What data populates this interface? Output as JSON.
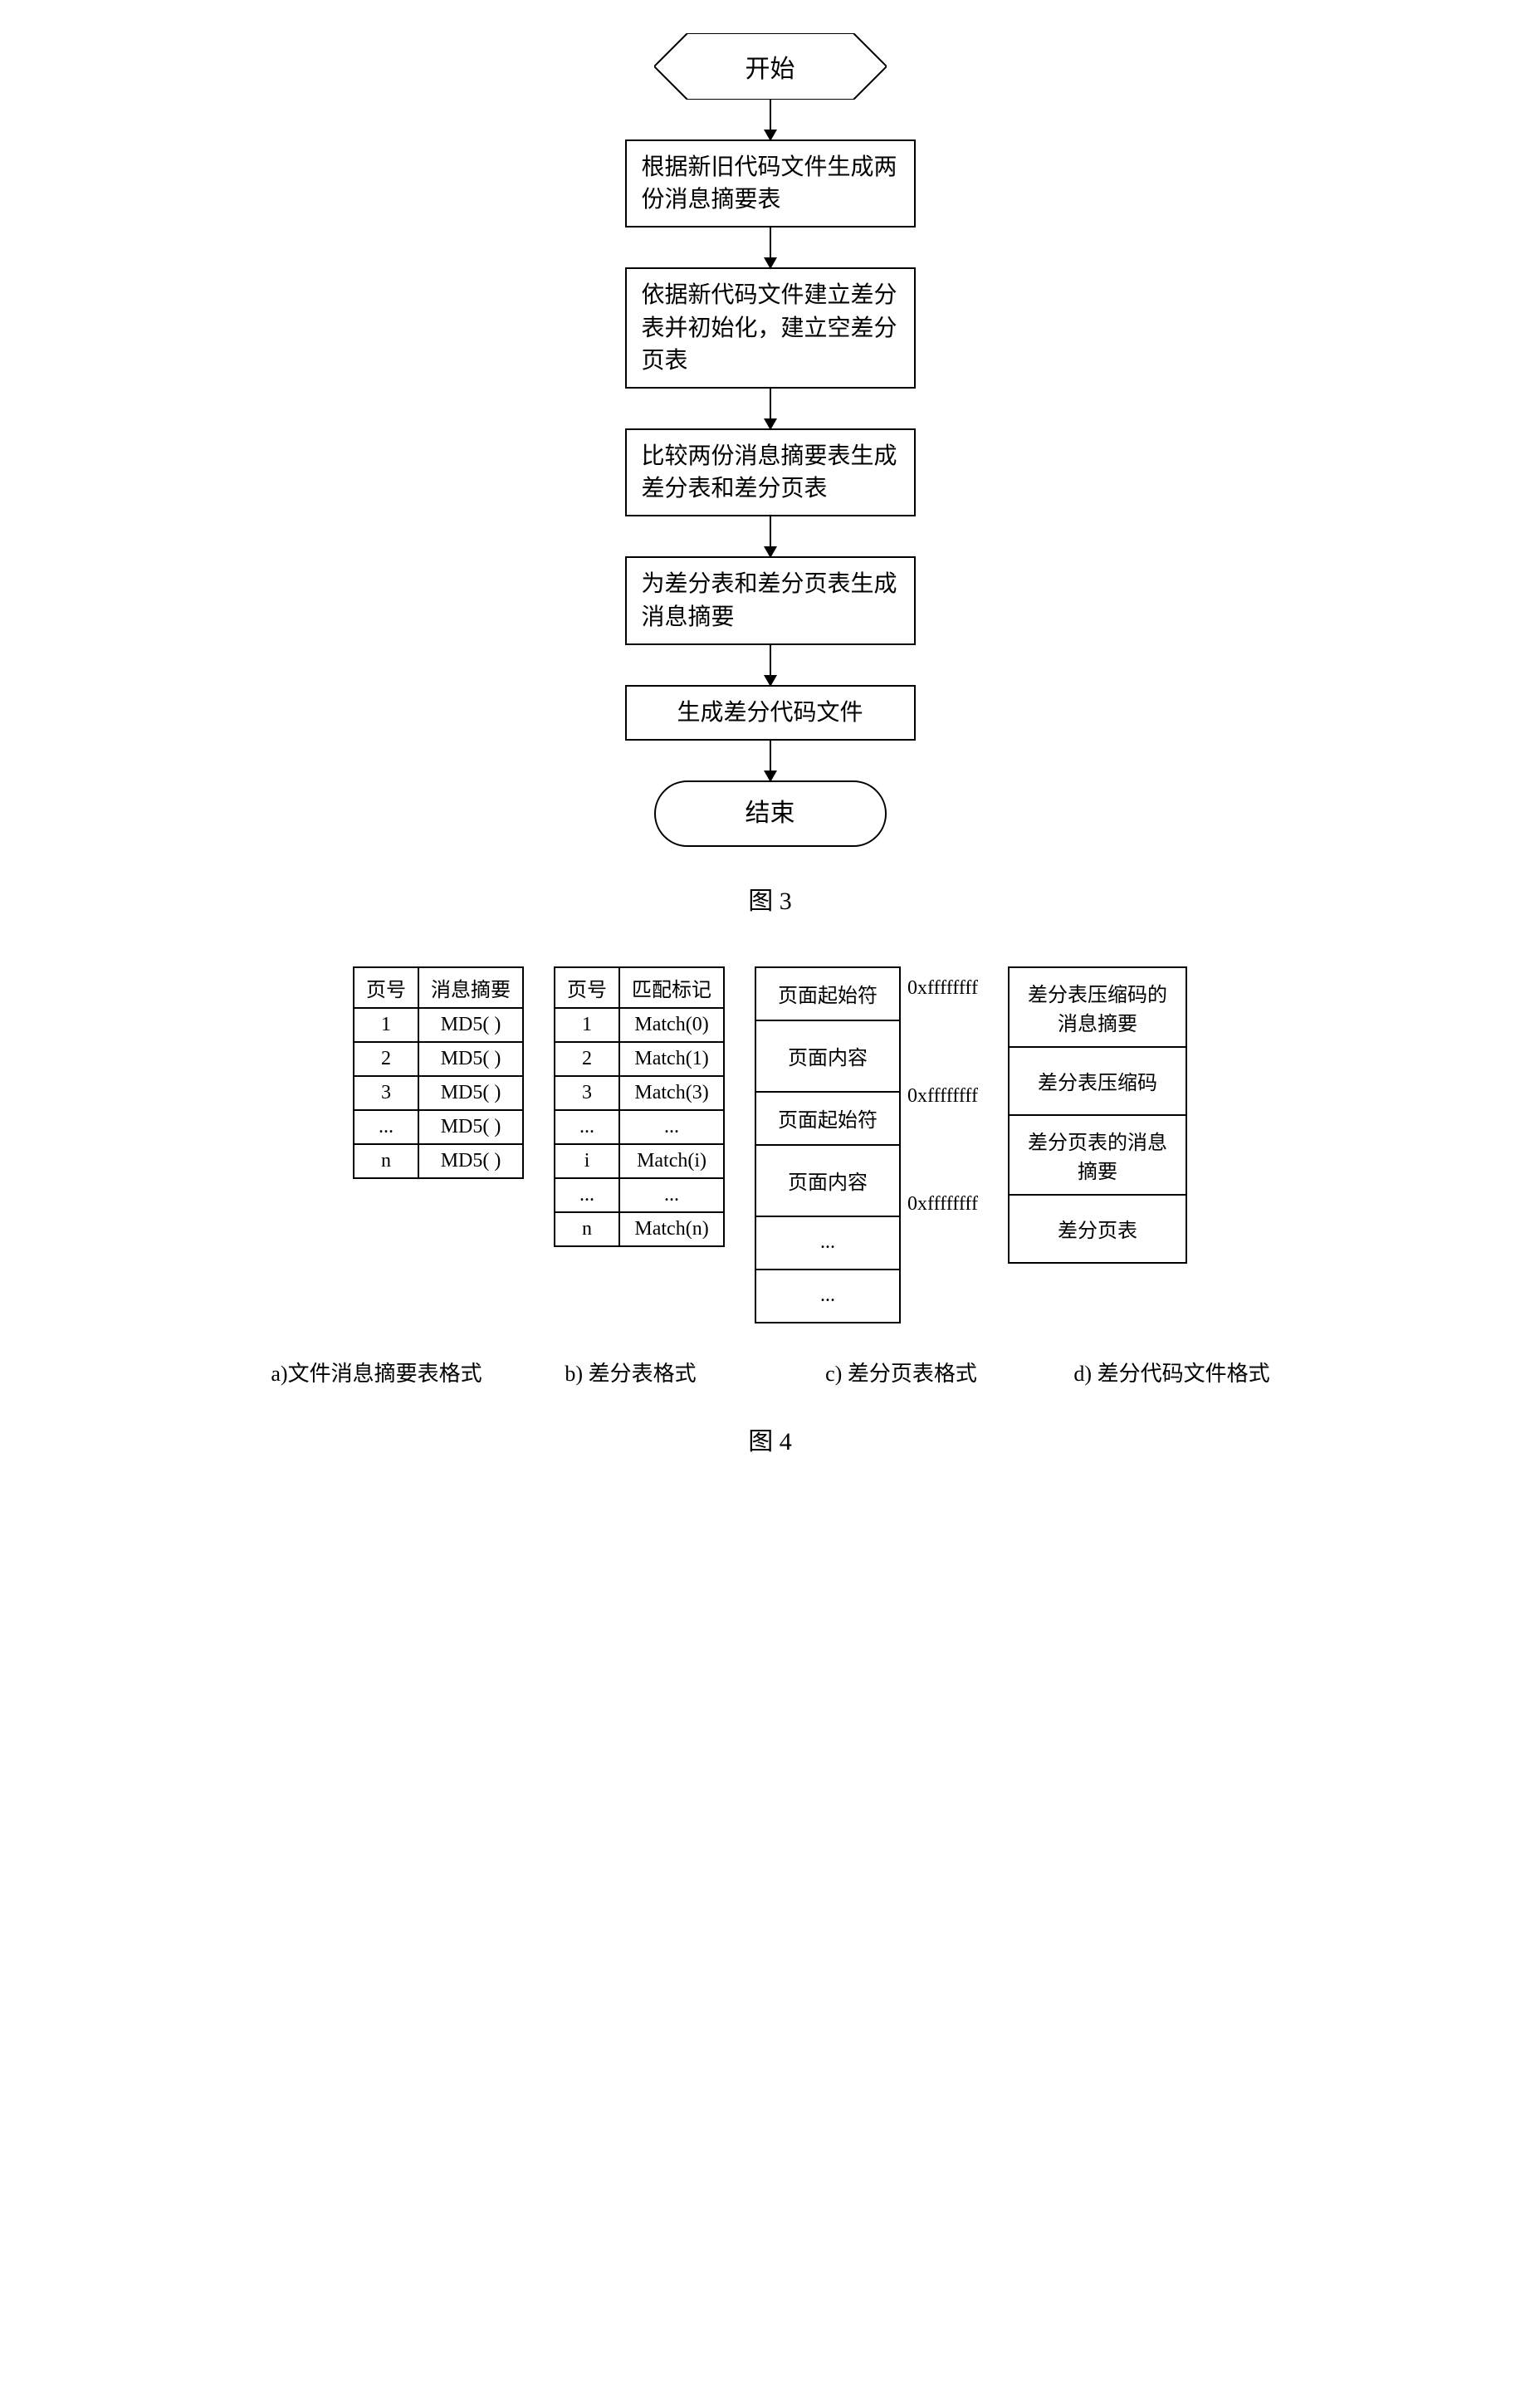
{
  "figure3": {
    "caption": "图 3",
    "start": "开始",
    "step1": "根据新旧代码文件生成两份消息摘要表",
    "step2": "依据新代码文件建立差分表并初始化，建立空差分页表",
    "step3": "比较两份消息摘要表生成差分表和差分页表",
    "step4": "为差分表和差分页表生成消息摘要",
    "step5": "生成差分代码文件",
    "end": "结束",
    "colors": {
      "border": "#000000",
      "background": "#ffffff",
      "text": "#000000"
    },
    "fontsize": 28
  },
  "figure4": {
    "caption": "图 4",
    "table_a": {
      "caption": "a)文件消息摘要表格式",
      "headers": [
        "页号",
        "消息摘要"
      ],
      "rows": [
        [
          "1",
          "MD5( )"
        ],
        [
          "2",
          "MD5( )"
        ],
        [
          "3",
          "MD5( )"
        ],
        [
          "...",
          "MD5( )"
        ],
        [
          "n",
          "MD5( )"
        ]
      ]
    },
    "table_b": {
      "caption": "b) 差分表格式",
      "headers": [
        "页号",
        "匹配标记"
      ],
      "rows": [
        [
          "1",
          "Match(0)"
        ],
        [
          "2",
          "Match(1)"
        ],
        [
          "3",
          "Match(3)"
        ],
        [
          "...",
          "..."
        ],
        [
          "i",
          "Match(i)"
        ],
        [
          "...",
          "..."
        ],
        [
          "n",
          "Match(n)"
        ]
      ]
    },
    "table_c": {
      "caption": "c) 差分页表格式",
      "cells": [
        "页面起始符",
        "页面内容",
        "页面起始符",
        "页面内容",
        "...",
        "..."
      ],
      "side_labels": [
        "0xffffffff",
        "0xffffffff",
        "0xffffffff"
      ],
      "side_label_rows": [
        0,
        2,
        4
      ],
      "cell_heights": [
        38,
        60,
        38,
        60,
        38,
        38
      ]
    },
    "table_d": {
      "caption": "d) 差分代码文件格式",
      "cells": [
        "差分表压缩码的消息摘要",
        "差分表压缩码",
        "差分页表的消息摘要",
        "差分页表"
      ]
    },
    "colors": {
      "border": "#000000",
      "background": "#ffffff",
      "text": "#000000"
    },
    "fontsize": 24
  }
}
